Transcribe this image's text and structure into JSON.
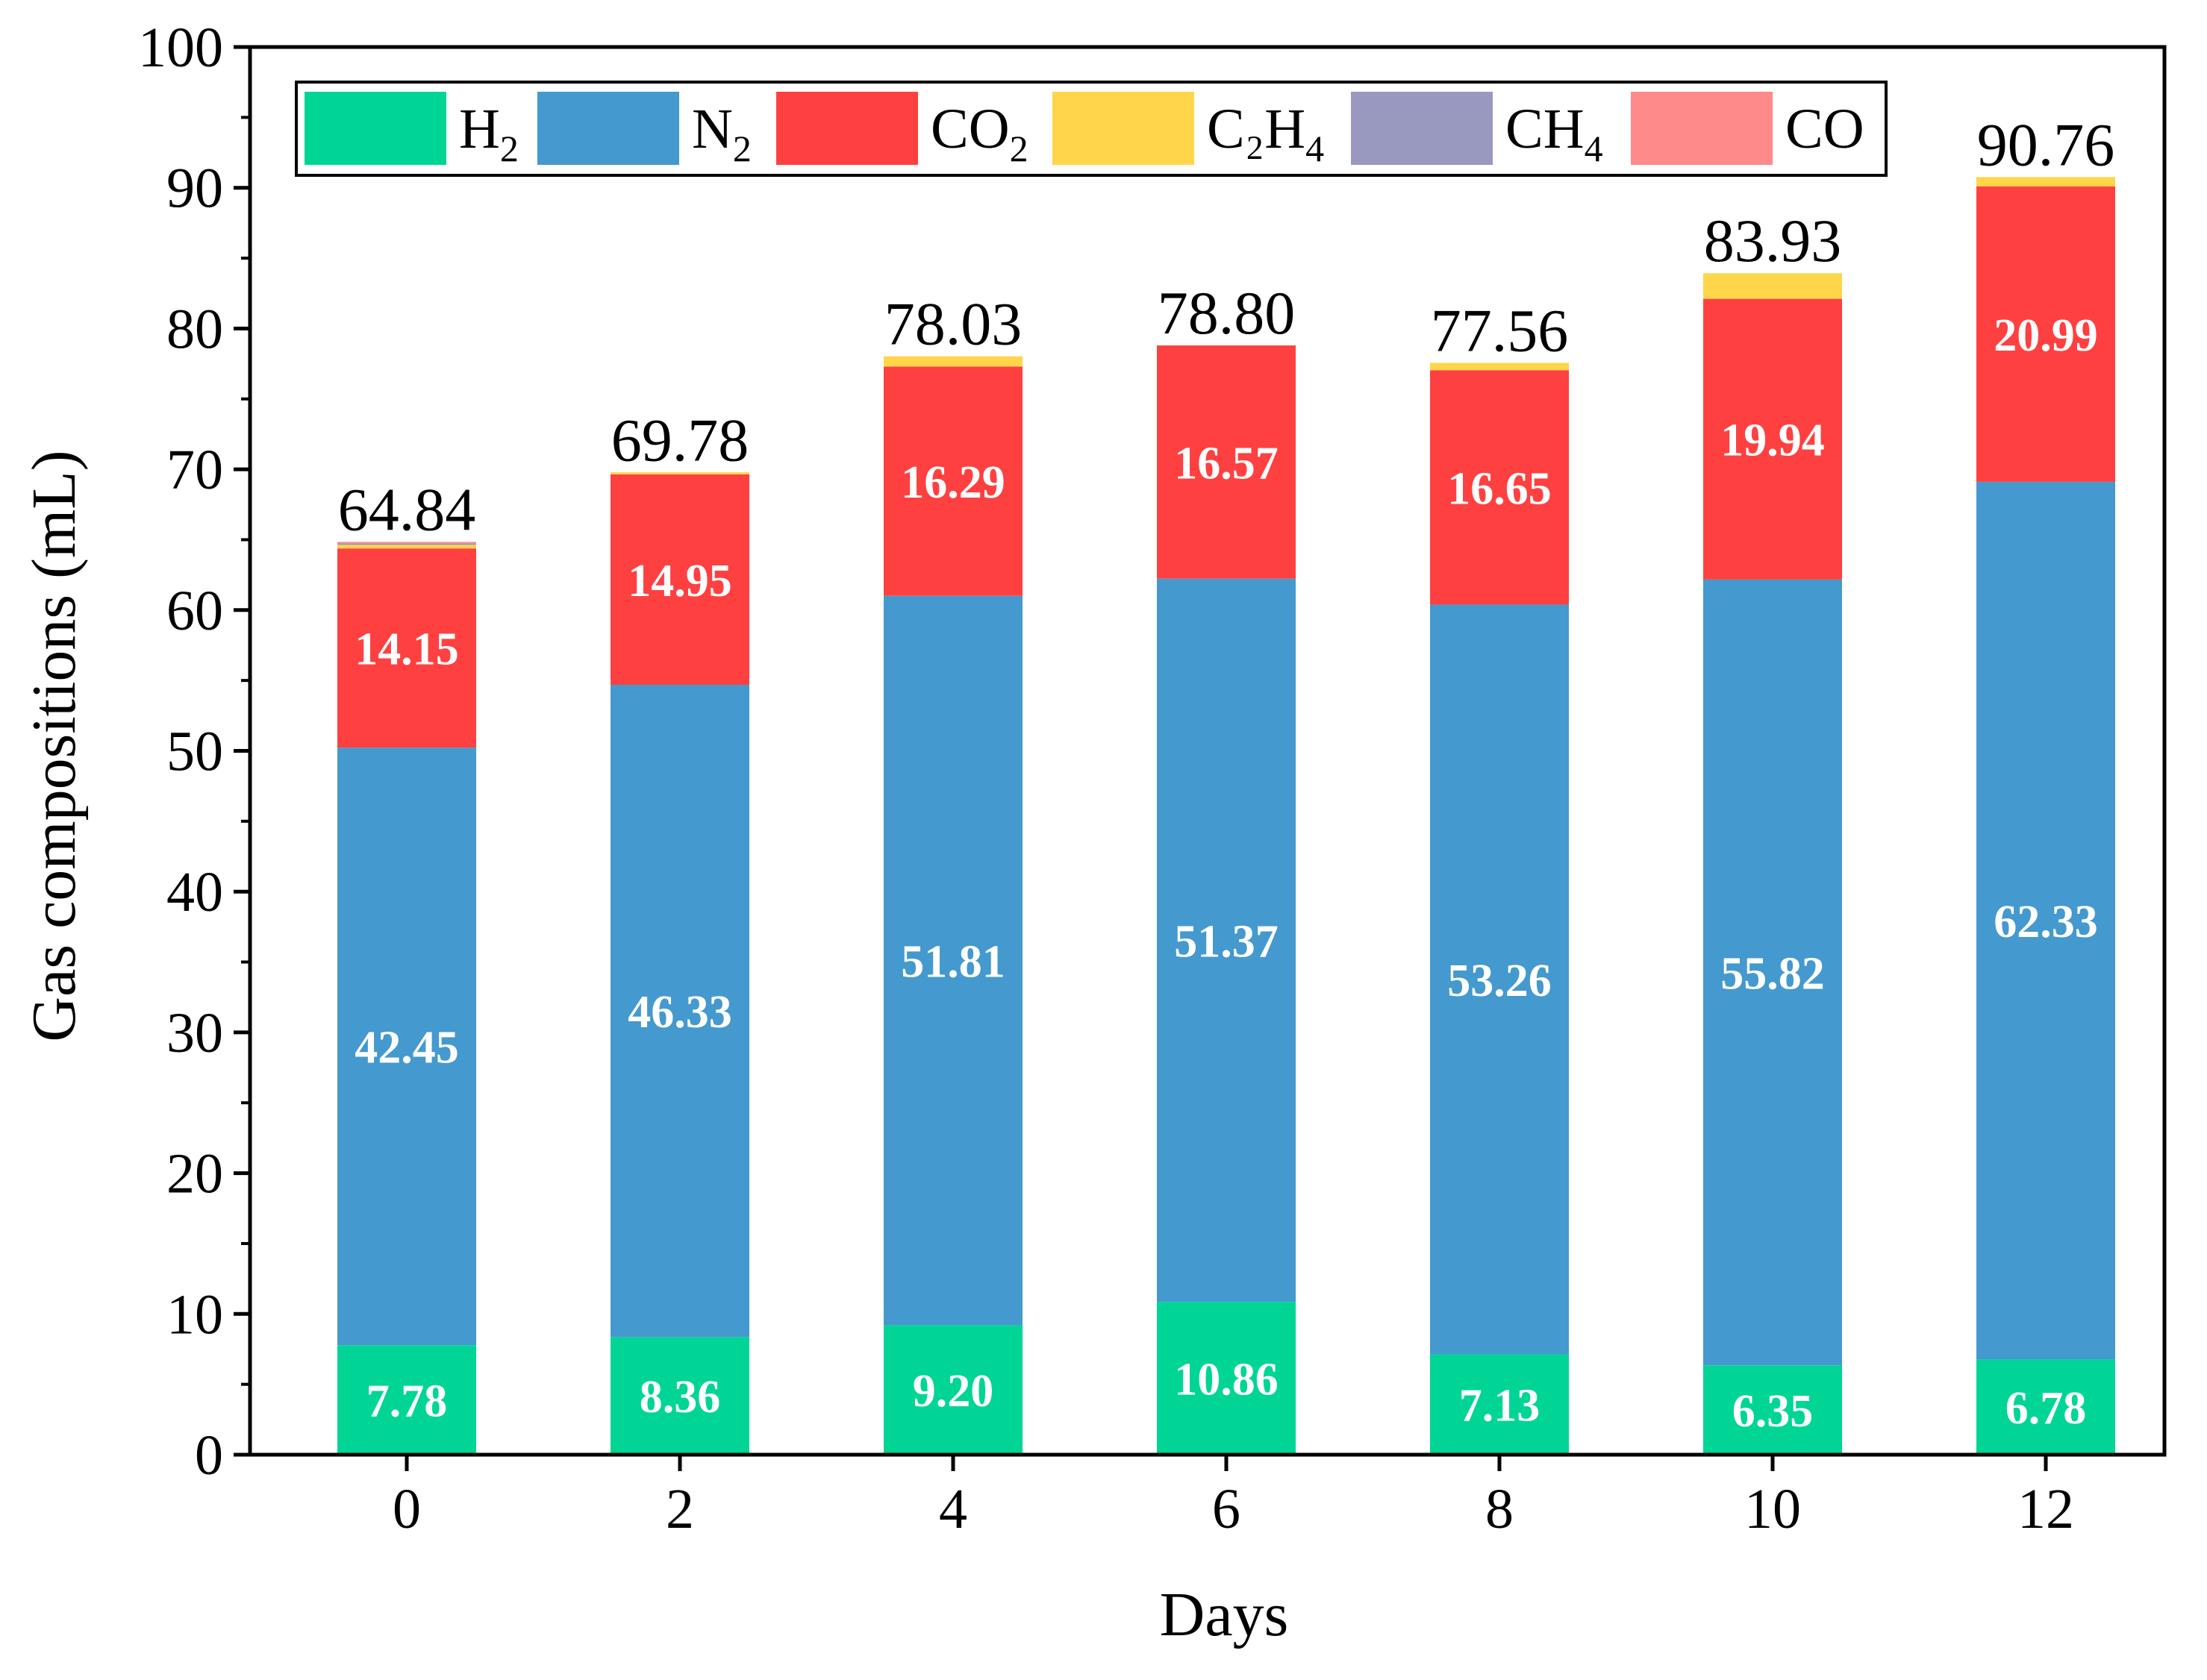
{
  "chart_data": {
    "type": "bar",
    "stacked": true,
    "xlabel": "Days",
    "ylabel": "Gas compositions (mL)",
    "ylim": [
      0,
      100
    ],
    "yticks": [
      0,
      10,
      20,
      30,
      40,
      50,
      60,
      70,
      80,
      90,
      100
    ],
    "categories": [
      "0",
      "2",
      "4",
      "6",
      "8",
      "10",
      "12"
    ],
    "legend_position": "top",
    "series": [
      {
        "name": "H2",
        "label_main": "H",
        "label_sub": "2",
        "color": "#00d596",
        "values": [
          7.78,
          8.36,
          9.2,
          10.86,
          7.13,
          6.35,
          6.78
        ],
        "show_labels": true
      },
      {
        "name": "N2",
        "label_main": "N",
        "label_sub": "2",
        "color": "#4499cf",
        "values": [
          42.45,
          46.33,
          51.81,
          51.37,
          53.26,
          55.82,
          62.33
        ],
        "show_labels": true
      },
      {
        "name": "CO2",
        "label_main": "CO",
        "label_sub": "2",
        "color": "#ff4040",
        "values": [
          14.15,
          14.95,
          16.29,
          16.57,
          16.65,
          19.94,
          20.99
        ],
        "show_labels": true
      },
      {
        "name": "C2H4",
        "label_main": "C₂H",
        "label_sub": "4",
        "color": "#ffd54a",
        "values": [
          0.25,
          0.15,
          0.73,
          0.0,
          0.52,
          1.82,
          0.66
        ],
        "show_labels": false
      },
      {
        "name": "CH4",
        "label_main": "CH",
        "label_sub": "4",
        "color": "#9999c0",
        "values": [
          0.1,
          0.0,
          0.0,
          0.0,
          0.0,
          0.0,
          0.0
        ],
        "show_labels": false
      },
      {
        "name": "CO",
        "label_main": "CO",
        "label_sub": "",
        "color": "#ff8a8a",
        "values": [
          0.11,
          0.0,
          0.0,
          0.0,
          0.0,
          0.0,
          0.0
        ],
        "show_labels": false
      }
    ],
    "totals": [
      "64.84",
      "69.78",
      "78.03",
      "78.80",
      "77.56",
      "83.93",
      "90.76"
    ]
  }
}
